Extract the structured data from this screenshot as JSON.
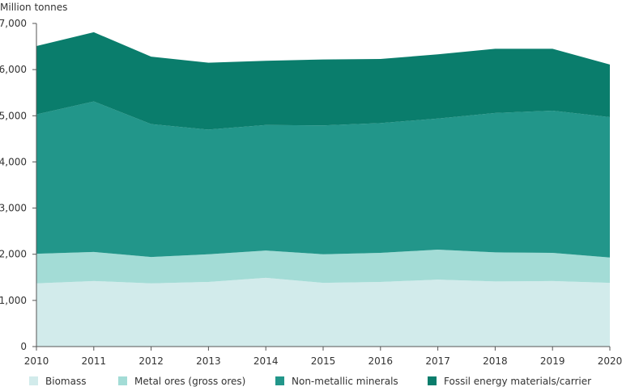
{
  "chart_data": {
    "type": "area",
    "stacked": true,
    "title": "",
    "ylabel": "Million tonnes",
    "xlabel": "",
    "ylim": [
      0,
      7000
    ],
    "yticks": [
      0,
      1000,
      2000,
      3000,
      4000,
      5000,
      6000,
      7000
    ],
    "ytick_labels": [
      "0",
      "1,000",
      "2,000",
      "3,000",
      "4,000",
      "5,000",
      "6,000",
      "7,000"
    ],
    "x": [
      "2010",
      "2011",
      "2012",
      "2013",
      "2014",
      "2015",
      "2016",
      "2017",
      "2018",
      "2019",
      "2020"
    ],
    "grid": false,
    "legend_position": "bottom",
    "series": [
      {
        "name": "Biomass",
        "color": "#d2ebeb",
        "values": [
          1370,
          1420,
          1370,
          1400,
          1490,
          1380,
          1400,
          1450,
          1410,
          1420,
          1380
        ]
      },
      {
        "name": "Metal ores (gross ores)",
        "color": "#a3dcd6",
        "values": [
          640,
          630,
          570,
          600,
          590,
          620,
          630,
          650,
          630,
          610,
          550
        ]
      },
      {
        "name": "Non-metallic minerals",
        "color": "#22968a",
        "values": [
          3020,
          3260,
          2880,
          2700,
          2720,
          2790,
          2810,
          2840,
          3020,
          3080,
          3040
        ]
      },
      {
        "name": "Fossil energy materials/carrier",
        "color": "#0a7d6c",
        "values": [
          1480,
          1500,
          1460,
          1450,
          1390,
          1430,
          1390,
          1390,
          1390,
          1340,
          1140
        ]
      }
    ]
  }
}
